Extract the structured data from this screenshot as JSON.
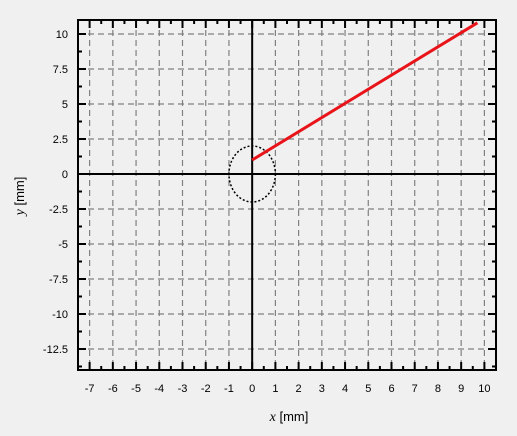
{
  "chart_data": {
    "type": "line",
    "title": "",
    "xlabel": {
      "var": "x",
      "unit": " [mm]"
    },
    "ylabel": {
      "var": "y",
      "unit": " [mm]"
    },
    "xlim": [
      -7.5,
      10.5
    ],
    "ylim": [
      -14,
      11
    ],
    "x_ticks": [
      -7,
      -6,
      -5,
      -4,
      -3,
      -2,
      -1,
      0,
      1,
      2,
      3,
      4,
      5,
      6,
      7,
      8,
      9,
      10
    ],
    "x_tick_labels": [
      "-7",
      "-6",
      "-5",
      "-4",
      "-3",
      "-2",
      "-1",
      "0",
      "1",
      "2",
      "3",
      "4",
      "5",
      "6",
      "7",
      "8",
      "9",
      "10"
    ],
    "y_ticks": [
      10,
      7.5,
      5,
      2.5,
      0,
      -2.5,
      -5,
      -7.5,
      -10,
      -12.5
    ],
    "y_tick_labels": [
      "10",
      "7.5",
      "5",
      "2.5",
      "0",
      "-2.5",
      "-5",
      "-7.5",
      "-10",
      "-12.5"
    ],
    "grid": true,
    "legend": "none",
    "series": [
      {
        "color": "#e8141a",
        "x": [
          0,
          9.7
        ],
        "y": [
          1.0,
          10.8
        ]
      }
    ],
    "annotations": [
      {
        "shape": "ellipse",
        "style": "dotted",
        "cx": 0,
        "cy": 0,
        "rx": 1.0,
        "ry": 2.0,
        "color": "#000000"
      }
    ],
    "colors": {
      "background": "#f0f0f0",
      "grid": "#808080",
      "axis": "#000000"
    }
  }
}
